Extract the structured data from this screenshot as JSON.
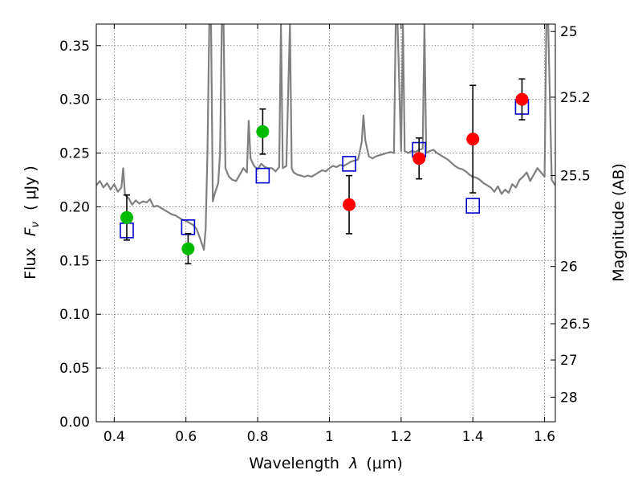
{
  "chart_data": {
    "type": "scatter",
    "xlabel_text": "Wavelength",
    "xlabel_symbol": "λ",
    "xlabel_unit": "(μm)",
    "ylabel_text": "Flux",
    "ylabel_symbol": "F",
    "ylabel_subscript": "ν",
    "ylabel_unit": "( μJy )",
    "y2label": "Magnitude (AB)",
    "xlim": [
      0.35,
      1.63
    ],
    "ylim": [
      0.0,
      0.37
    ],
    "grid": true,
    "xticks": [
      0.4,
      0.6,
      0.8,
      1.0,
      1.2,
      1.4,
      1.6
    ],
    "xtick_labels": [
      "0.4",
      "0.6",
      "0.8",
      "1",
      "1.2",
      "1.4",
      "1.6"
    ],
    "yticks": [
      0.0,
      0.05,
      0.1,
      0.15,
      0.2,
      0.25,
      0.3,
      0.35
    ],
    "ytick_labels": [
      "0.00",
      "0.05",
      "0.10",
      "0.15",
      "0.20",
      "0.25",
      "0.30",
      "0.35"
    ],
    "mag_ticks": [
      {
        "label": "25",
        "flux": 0.3631
      },
      {
        "label": "25.2",
        "flux": 0.302
      },
      {
        "label": "25.5",
        "flux": 0.2291
      },
      {
        "label": "26",
        "flux": 0.1445
      },
      {
        "label": "26.5",
        "flux": 0.0912
      },
      {
        "label": "27",
        "flux": 0.0575
      },
      {
        "label": "28",
        "flux": 0.0229
      }
    ],
    "series": [
      {
        "marker": "circle",
        "color": "#00bb00",
        "points": [
          {
            "x": 0.435,
            "y": 0.19,
            "err": 0.021
          },
          {
            "x": 0.606,
            "y": 0.161,
            "err": 0.014
          },
          {
            "x": 0.814,
            "y": 0.27,
            "err": 0.021
          }
        ]
      },
      {
        "marker": "circle",
        "color": "#ff0000",
        "points": [
          {
            "x": 1.055,
            "y": 0.202,
            "err": 0.027
          },
          {
            "x": 1.25,
            "y": 0.245,
            "err": 0.019
          },
          {
            "x": 1.4,
            "y": 0.263,
            "err": 0.05
          },
          {
            "x": 1.537,
            "y": 0.3,
            "err": 0.019
          }
        ]
      },
      {
        "marker": "open-square",
        "color": "#0000cc",
        "points": [
          {
            "x": 0.435,
            "y": 0.178
          },
          {
            "x": 0.606,
            "y": 0.181
          },
          {
            "x": 0.814,
            "y": 0.229
          },
          {
            "x": 1.055,
            "y": 0.24
          },
          {
            "x": 1.25,
            "y": 0.253
          },
          {
            "x": 1.4,
            "y": 0.201
          },
          {
            "x": 1.537,
            "y": 0.293
          }
        ]
      },
      {
        "marker": "line",
        "color": "#808080",
        "points": [
          [
            0.35,
            0.22
          ],
          [
            0.36,
            0.224
          ],
          [
            0.37,
            0.218
          ],
          [
            0.38,
            0.222
          ],
          [
            0.39,
            0.216
          ],
          [
            0.4,
            0.221
          ],
          [
            0.41,
            0.214
          ],
          [
            0.42,
            0.218
          ],
          [
            0.425,
            0.236
          ],
          [
            0.43,
            0.211
          ],
          [
            0.44,
            0.208
          ],
          [
            0.45,
            0.202
          ],
          [
            0.46,
            0.206
          ],
          [
            0.47,
            0.203
          ],
          [
            0.48,
            0.205
          ],
          [
            0.49,
            0.204
          ],
          [
            0.5,
            0.207
          ],
          [
            0.51,
            0.2
          ],
          [
            0.52,
            0.201
          ],
          [
            0.53,
            0.199
          ],
          [
            0.54,
            0.197
          ],
          [
            0.55,
            0.195
          ],
          [
            0.56,
            0.193
          ],
          [
            0.57,
            0.192
          ],
          [
            0.58,
            0.19
          ],
          [
            0.59,
            0.188
          ],
          [
            0.6,
            0.187
          ],
          [
            0.61,
            0.185
          ],
          [
            0.62,
            0.183
          ],
          [
            0.63,
            0.179
          ],
          [
            0.64,
            0.17
          ],
          [
            0.65,
            0.16
          ],
          [
            0.655,
            0.18
          ],
          [
            0.66,
            0.25
          ],
          [
            0.665,
            0.37
          ],
          [
            0.67,
            0.37
          ],
          [
            0.675,
            0.205
          ],
          [
            0.68,
            0.212
          ],
          [
            0.69,
            0.222
          ],
          [
            0.695,
            0.25
          ],
          [
            0.7,
            0.37
          ],
          [
            0.705,
            0.37
          ],
          [
            0.71,
            0.236
          ],
          [
            0.72,
            0.228
          ],
          [
            0.73,
            0.225
          ],
          [
            0.74,
            0.224
          ],
          [
            0.75,
            0.23
          ],
          [
            0.76,
            0.236
          ],
          [
            0.77,
            0.232
          ],
          [
            0.775,
            0.28
          ],
          [
            0.78,
            0.245
          ],
          [
            0.79,
            0.238
          ],
          [
            0.8,
            0.235
          ],
          [
            0.81,
            0.24
          ],
          [
            0.82,
            0.237
          ],
          [
            0.83,
            0.236
          ],
          [
            0.84,
            0.236
          ],
          [
            0.85,
            0.233
          ],
          [
            0.86,
            0.237
          ],
          [
            0.865,
            0.37
          ],
          [
            0.87,
            0.236
          ],
          [
            0.88,
            0.238
          ],
          [
            0.89,
            0.37
          ],
          [
            0.895,
            0.236
          ],
          [
            0.9,
            0.232
          ],
          [
            0.91,
            0.23
          ],
          [
            0.92,
            0.229
          ],
          [
            0.93,
            0.228
          ],
          [
            0.94,
            0.229
          ],
          [
            0.95,
            0.228
          ],
          [
            0.96,
            0.23
          ],
          [
            0.97,
            0.232
          ],
          [
            0.98,
            0.234
          ],
          [
            0.99,
            0.233
          ],
          [
            1.0,
            0.236
          ],
          [
            1.01,
            0.238
          ],
          [
            1.02,
            0.237
          ],
          [
            1.03,
            0.239
          ],
          [
            1.04,
            0.238
          ],
          [
            1.05,
            0.24
          ],
          [
            1.06,
            0.242
          ],
          [
            1.07,
            0.243
          ],
          [
            1.08,
            0.244
          ],
          [
            1.09,
            0.26
          ],
          [
            1.095,
            0.285
          ],
          [
            1.1,
            0.262
          ],
          [
            1.11,
            0.247
          ],
          [
            1.12,
            0.245
          ],
          [
            1.13,
            0.247
          ],
          [
            1.14,
            0.248
          ],
          [
            1.15,
            0.249
          ],
          [
            1.16,
            0.25
          ],
          [
            1.17,
            0.251
          ],
          [
            1.18,
            0.25
          ],
          [
            1.185,
            0.37
          ],
          [
            1.19,
            0.37
          ],
          [
            1.2,
            0.252
          ],
          [
            1.205,
            0.37
          ],
          [
            1.21,
            0.252
          ],
          [
            1.22,
            0.25
          ],
          [
            1.23,
            0.252
          ],
          [
            1.24,
            0.251
          ],
          [
            1.25,
            0.253
          ],
          [
            1.26,
            0.254
          ],
          [
            1.265,
            0.37
          ],
          [
            1.27,
            0.25
          ],
          [
            1.28,
            0.252
          ],
          [
            1.29,
            0.253
          ],
          [
            1.3,
            0.25
          ],
          [
            1.31,
            0.248
          ],
          [
            1.32,
            0.246
          ],
          [
            1.33,
            0.244
          ],
          [
            1.34,
            0.241
          ],
          [
            1.35,
            0.238
          ],
          [
            1.36,
            0.236
          ],
          [
            1.37,
            0.235
          ],
          [
            1.38,
            0.233
          ],
          [
            1.39,
            0.23
          ],
          [
            1.4,
            0.228
          ],
          [
            1.41,
            0.227
          ],
          [
            1.42,
            0.225
          ],
          [
            1.43,
            0.222
          ],
          [
            1.44,
            0.22
          ],
          [
            1.45,
            0.218
          ],
          [
            1.46,
            0.214
          ],
          [
            1.47,
            0.219
          ],
          [
            1.48,
            0.212
          ],
          [
            1.49,
            0.216
          ],
          [
            1.5,
            0.213
          ],
          [
            1.51,
            0.221
          ],
          [
            1.52,
            0.218
          ],
          [
            1.53,
            0.225
          ],
          [
            1.54,
            0.228
          ],
          [
            1.55,
            0.232
          ],
          [
            1.56,
            0.224
          ],
          [
            1.57,
            0.23
          ],
          [
            1.58,
            0.236
          ],
          [
            1.59,
            0.232
          ],
          [
            1.6,
            0.228
          ],
          [
            1.605,
            0.37
          ],
          [
            1.61,
            0.37
          ],
          [
            1.62,
            0.225
          ],
          [
            1.63,
            0.22
          ]
        ]
      }
    ]
  }
}
